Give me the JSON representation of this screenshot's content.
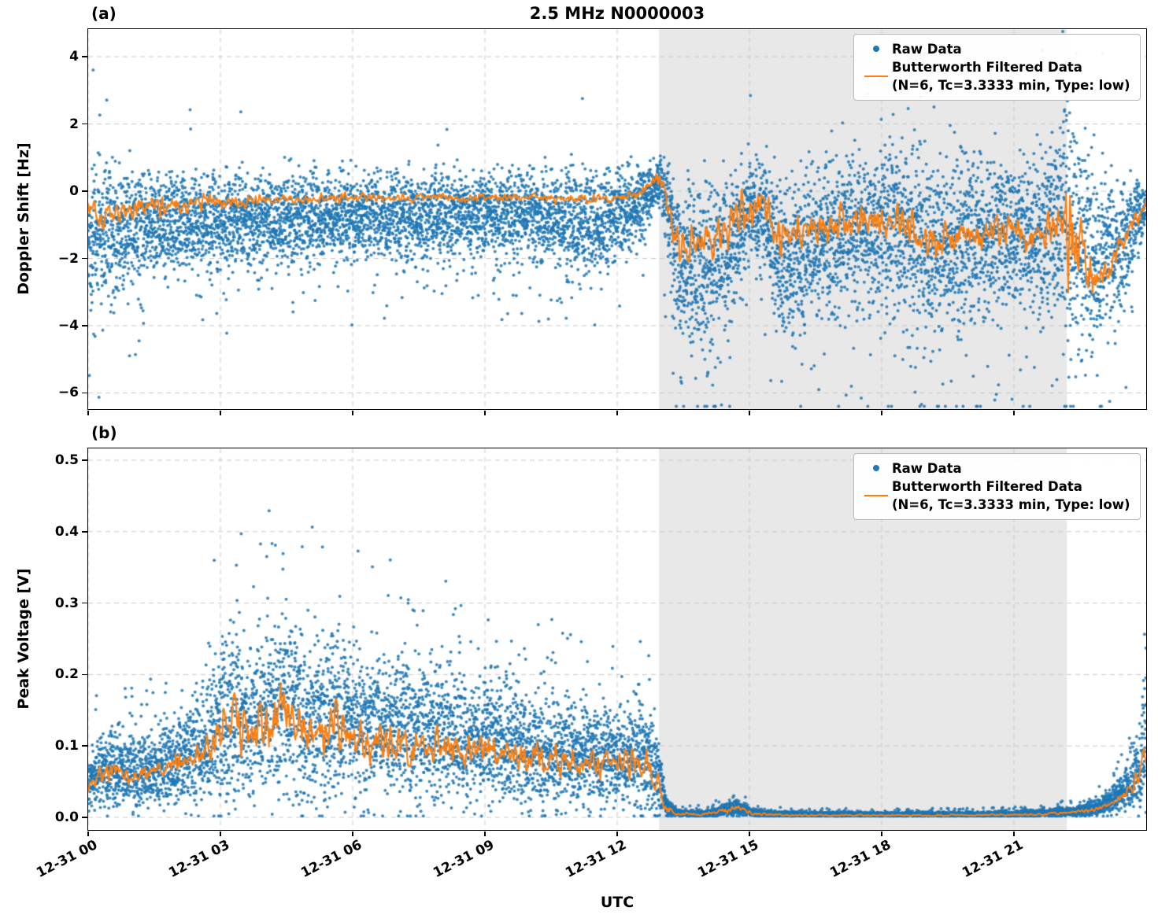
{
  "figure": {
    "title": "2.5 MHz N0000003",
    "xlabel": "UTC",
    "colors": {
      "raw": "#1f77b4",
      "filtered": "#ff7f0e",
      "shade": "#e8e8e8",
      "grid": "#c9c9c9",
      "axis": "#000000"
    },
    "legend": {
      "raw_label": "Raw Data",
      "filtered_label": "Butterworth Filtered Data",
      "filtered_sublabel": "(N=6, Tc=3.3333 min, Type: low)"
    }
  },
  "chart_data": [
    {
      "type": "scatter+line",
      "panel_label": "(a)",
      "ylabel": "Doppler Shift [Hz]",
      "ylim": [
        -6.48,
        4.82
      ],
      "yticks": [
        4,
        2,
        0,
        -2,
        -4,
        -6
      ],
      "ytick_labels": [
        "4",
        "2",
        "0",
        "−2",
        "−4",
        "−6"
      ],
      "x_hours": [
        0,
        24
      ],
      "xticks_hours": [
        0,
        3,
        6,
        9,
        12,
        15,
        18,
        21
      ],
      "xtick_labels": [
        "12-31 00",
        "12-31 03",
        "12-31 06",
        "12-31 09",
        "12-31 12",
        "12-31 15",
        "12-31 18",
        "12-31 21"
      ],
      "shade_hours": [
        12.95,
        22.2
      ],
      "grid": true,
      "legend_position": "upper right",
      "clip": [
        -6.4,
        4.75
      ],
      "outlier_prob": 0.02,
      "outlier_up_fraction": 0.15,
      "seed": 42,
      "series": {
        "raw": {
          "name": "Raw Data",
          "n_points": 9000,
          "alpha": 0.85,
          "t": [
            0,
            0.3,
            0.8,
            1.5,
            2.5,
            4,
            6,
            8,
            10,
            11.5,
            12.5,
            12.85,
            13.0,
            13.15,
            13.4,
            14.0,
            14.6,
            15.0,
            15.35,
            15.7,
            16.5,
            17.5,
            18.3,
            19.2,
            19.9,
            20.6,
            21.3,
            21.8,
            22.05,
            22.2,
            22.45,
            22.8,
            23.2,
            23.55,
            23.8,
            24
          ],
          "center": [
            -1.6,
            -1.4,
            -1.1,
            -1.0,
            -0.9,
            -0.85,
            -0.8,
            -0.75,
            -0.75,
            -0.9,
            -0.55,
            0.25,
            0.3,
            -0.6,
            -2.2,
            -2.4,
            -1.5,
            -0.5,
            -0.7,
            -2.2,
            -1.6,
            -1.2,
            -1.1,
            -1.8,
            -1.5,
            -1.3,
            -1.4,
            -1.0,
            -0.8,
            -1.0,
            -1.6,
            -2.1,
            -1.9,
            -1.4,
            -0.8,
            -0.35
          ],
          "spread": [
            1.9,
            1.7,
            1.45,
            1.3,
            1.2,
            1.15,
            1.1,
            1.1,
            1.1,
            1.3,
            1.0,
            0.6,
            0.7,
            1.5,
            1.9,
            2.2,
            1.9,
            1.2,
            1.3,
            2.0,
            1.9,
            2.0,
            2.2,
            2.3,
            2.2,
            1.9,
            1.9,
            1.9,
            2.9,
            3.6,
            2.7,
            2.3,
            2.0,
            1.6,
            1.0,
            0.5
          ]
        },
        "filtered": {
          "name": "Butterworth Filtered Data (N=6, Tc=3.3333 min, Type: low)",
          "t": [
            0,
            0.3,
            0.8,
            1.5,
            2.5,
            4,
            6,
            8,
            10,
            11.5,
            12.5,
            12.85,
            13.0,
            13.15,
            13.4,
            14.0,
            14.6,
            15.0,
            15.35,
            15.7,
            16.5,
            17.5,
            18.3,
            19.2,
            19.9,
            20.6,
            21.3,
            21.8,
            22.05,
            22.2,
            22.45,
            22.8,
            23.2,
            23.55,
            23.8,
            24
          ],
          "value": [
            -0.45,
            -0.7,
            -0.55,
            -0.45,
            -0.35,
            -0.25,
            -0.2,
            -0.2,
            -0.2,
            -0.25,
            -0.1,
            0.4,
            0.45,
            -0.4,
            -1.6,
            -1.5,
            -1.0,
            -0.45,
            -0.6,
            -1.6,
            -1.1,
            -0.9,
            -0.85,
            -1.5,
            -1.3,
            -1.15,
            -1.3,
            -1.05,
            -0.8,
            -1.1,
            -2.0,
            -2.4,
            -2.1,
            -1.5,
            -0.8,
            -0.2
          ],
          "jitter": [
            0.35,
            0.38,
            0.32,
            0.3,
            0.26,
            0.16,
            0.13,
            0.12,
            0.12,
            0.16,
            0.16,
            0.2,
            0.3,
            0.5,
            0.6,
            0.6,
            0.6,
            0.5,
            0.5,
            0.6,
            0.5,
            0.5,
            0.5,
            0.5,
            0.45,
            0.45,
            0.5,
            0.6,
            1.1,
            2.0,
            1.1,
            0.6,
            0.5,
            0.45,
            0.35,
            0.2
          ]
        }
      }
    },
    {
      "type": "scatter+line",
      "panel_label": "(b)",
      "ylabel": "Peak Voltage [V]",
      "ylim": [
        -0.0176,
        0.5165
      ],
      "yticks": [
        0.5,
        0.4,
        0.3,
        0.2,
        0.1,
        0.0
      ],
      "ytick_labels": [
        "0.5",
        "0.4",
        "0.3",
        "0.2",
        "0.1",
        "0.0"
      ],
      "x_hours": [
        0,
        24
      ],
      "xticks_hours": [
        0,
        3,
        6,
        9,
        12,
        15,
        18,
        21
      ],
      "xtick_labels": [
        "12-31 00",
        "12-31 03",
        "12-31 06",
        "12-31 09",
        "12-31 12",
        "12-31 15",
        "12-31 18",
        "12-31 21"
      ],
      "shade_hours": [
        12.95,
        22.2
      ],
      "grid": true,
      "legend_position": "upper right",
      "clip": [
        0.002,
        0.505
      ],
      "outlier_prob": 0.025,
      "outlier_up_fraction": 0.97,
      "seed": 1337,
      "series": {
        "raw": {
          "name": "Raw Data",
          "n_points": 9000,
          "alpha": 0.85,
          "t": [
            0,
            0.5,
            1,
            1.6,
            2.2,
            2.7,
            3.0,
            3.3,
            3.7,
            4.1,
            4.5,
            4.8,
            5.2,
            5.6,
            6.0,
            6.5,
            7.0,
            7.5,
            8.0,
            8.5,
            9.0,
            9.5,
            10.0,
            10.5,
            11.0,
            11.5,
            12.0,
            12.4,
            12.7,
            12.95,
            13.1,
            13.35,
            14.0,
            14.7,
            15.1,
            16.0,
            18.0,
            20.0,
            21.5,
            22.3,
            22.9,
            23.3,
            23.65,
            23.85,
            24
          ],
          "center": [
            0.055,
            0.07,
            0.065,
            0.07,
            0.085,
            0.11,
            0.13,
            0.145,
            0.13,
            0.15,
            0.16,
            0.145,
            0.13,
            0.14,
            0.135,
            0.12,
            0.13,
            0.12,
            0.12,
            0.11,
            0.11,
            0.105,
            0.095,
            0.09,
            0.09,
            0.085,
            0.08,
            0.09,
            0.08,
            0.055,
            0.018,
            0.006,
            0.005,
            0.013,
            0.006,
            0.004,
            0.004,
            0.004,
            0.005,
            0.008,
            0.014,
            0.025,
            0.045,
            0.07,
            0.105
          ],
          "spread": [
            0.035,
            0.045,
            0.04,
            0.045,
            0.055,
            0.075,
            0.09,
            0.1,
            0.09,
            0.105,
            0.115,
            0.105,
            0.095,
            0.1,
            0.095,
            0.085,
            0.09,
            0.085,
            0.08,
            0.075,
            0.075,
            0.07,
            0.065,
            0.065,
            0.06,
            0.06,
            0.055,
            0.065,
            0.06,
            0.04,
            0.012,
            0.004,
            0.004,
            0.01,
            0.004,
            0.003,
            0.003,
            0.003,
            0.004,
            0.006,
            0.01,
            0.018,
            0.03,
            0.05,
            0.075
          ]
        },
        "filtered": {
          "name": "Butterworth Filtered Data (N=6, Tc=3.3333 min, Type: low)",
          "t": [
            0,
            0.5,
            1,
            1.6,
            2.2,
            2.7,
            3.0,
            3.3,
            3.7,
            4.1,
            4.5,
            4.8,
            5.2,
            5.6,
            6.0,
            6.5,
            7.0,
            7.5,
            8.0,
            8.5,
            9.0,
            9.5,
            10.0,
            10.5,
            11.0,
            11.5,
            12.0,
            12.4,
            12.7,
            12.95,
            13.1,
            13.35,
            14.0,
            14.7,
            15.1,
            16.0,
            18.0,
            20.0,
            21.5,
            22.3,
            22.9,
            23.3,
            23.65,
            23.85,
            24
          ],
          "value": [
            0.05,
            0.065,
            0.06,
            0.065,
            0.075,
            0.095,
            0.115,
            0.13,
            0.11,
            0.13,
            0.14,
            0.125,
            0.11,
            0.12,
            0.115,
            0.1,
            0.11,
            0.1,
            0.1,
            0.095,
            0.095,
            0.09,
            0.08,
            0.08,
            0.08,
            0.075,
            0.07,
            0.085,
            0.07,
            0.045,
            0.012,
            0.005,
            0.004,
            0.012,
            0.005,
            0.003,
            0.003,
            0.003,
            0.004,
            0.007,
            0.012,
            0.022,
            0.04,
            0.06,
            0.09
          ],
          "jitter": [
            0.012,
            0.015,
            0.012,
            0.014,
            0.018,
            0.025,
            0.03,
            0.035,
            0.03,
            0.035,
            0.04,
            0.035,
            0.032,
            0.035,
            0.032,
            0.03,
            0.03,
            0.03,
            0.026,
            0.025,
            0.025,
            0.022,
            0.02,
            0.02,
            0.02,
            0.018,
            0.018,
            0.025,
            0.02,
            0.014,
            0.006,
            0.002,
            0.002,
            0.005,
            0.002,
            0.0012,
            0.0012,
            0.0012,
            0.0015,
            0.002,
            0.003,
            0.005,
            0.008,
            0.012,
            0.018
          ]
        }
      }
    }
  ]
}
